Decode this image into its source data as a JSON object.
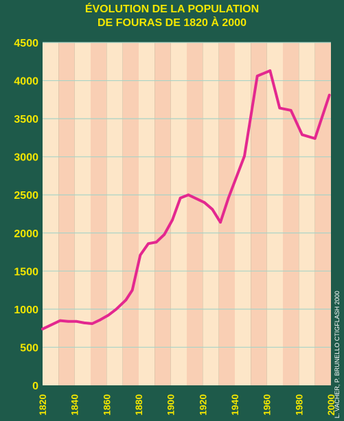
{
  "chart_data": {
    "type": "line",
    "title_lines": [
      "ÉVOLUTION DE LA POPULATION",
      "DE FOURAS DE 1820 À 2000"
    ],
    "xlabel": "",
    "ylabel": "",
    "xlim": [
      1820,
      2000
    ],
    "ylim": [
      0,
      4500
    ],
    "x_ticks": [
      1820,
      1840,
      1860,
      1880,
      1900,
      1920,
      1940,
      1960,
      1980,
      2000
    ],
    "y_ticks": [
      0,
      500,
      1000,
      1500,
      2000,
      2500,
      3000,
      3500,
      4000,
      4500
    ],
    "grid": true,
    "legend": "none",
    "credit": "L. VACHER, P. BRUNELLO CTIGFLASH 2000",
    "colors": {
      "background": "#1e5a4a",
      "band_light": "#fde6c8",
      "band_dark": "#f9cfb4",
      "gridline": "#a9d3c6",
      "line": "#e3288f",
      "text": "#f3e600"
    },
    "series": [
      {
        "x": [
          1820,
          1831,
          1836,
          1841,
          1846,
          1851,
          1856,
          1861,
          1866,
          1872,
          1876,
          1881,
          1886,
          1891,
          1896,
          1901,
          1906,
          1911,
          1921,
          1926,
          1931,
          1936,
          1946,
          1954,
          1962,
          1968,
          1975,
          1982,
          1990,
          1999
        ],
        "y": [
          740,
          850,
          840,
          840,
          820,
          810,
          860,
          920,
          1000,
          1120,
          1250,
          1710,
          1860,
          1880,
          1980,
          2170,
          2460,
          2500,
          2400,
          2310,
          2140,
          2460,
          3010,
          4060,
          4130,
          3640,
          3610,
          3290,
          3240,
          3810
        ]
      }
    ]
  }
}
